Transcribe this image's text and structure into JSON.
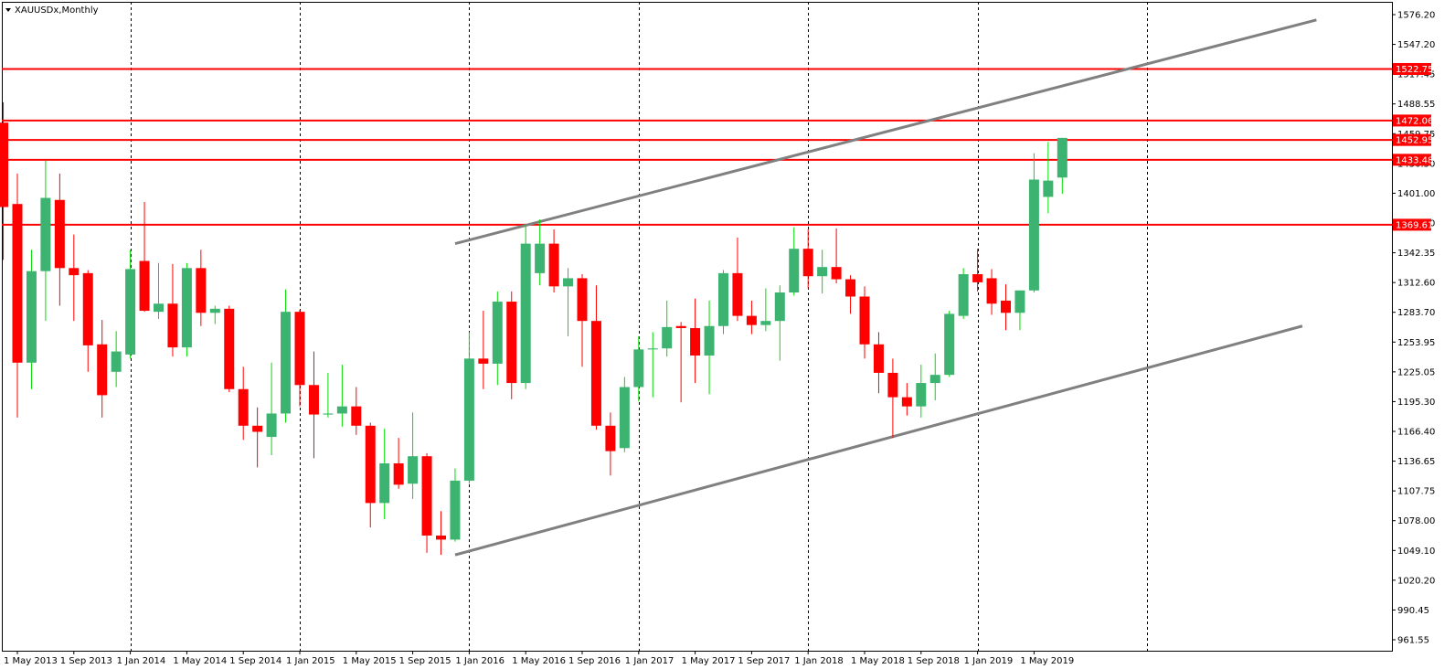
{
  "chart_data": {
    "type": "candlestick",
    "title": "XAUUSDx,Monthly",
    "colors": {
      "bull": "#3cb371",
      "bear": "#ff0000",
      "level_line": "#ff0000",
      "trend_line": "#808080",
      "grid": "#000000"
    },
    "ylim": [
      961.55,
      1576.2
    ],
    "y_ticks": [
      "1576.20",
      "1547.20",
      "1517.45",
      "1488.55",
      "1459.75",
      "1430.50",
      "1401.00",
      "1371.90",
      "1342.35",
      "1312.60",
      "1283.70",
      "1253.95",
      "1225.05",
      "1195.30",
      "1166.40",
      "1136.65",
      "1107.75",
      "1078.00",
      "1049.10",
      "1020.20",
      "990.45",
      "961.55"
    ],
    "x_labels": [
      "1 May 2013",
      "1 Sep 2013",
      "1 Jan 2014",
      "1 May 2014",
      "1 Sep 2014",
      "1 Jan 2015",
      "1 May 2015",
      "1 Sep 2015",
      "1 Jan 2016",
      "1 May 2016",
      "1 Sep 2016",
      "1 Jan 2017",
      "1 May 2017",
      "1 Sep 2017",
      "1 Jan 2018",
      "1 May 2018",
      "1 Sep 2018",
      "1 Jan 2019",
      "1 May 2019"
    ],
    "x_label_months": [
      0,
      4,
      8,
      12,
      16,
      20,
      24,
      28,
      32,
      36,
      40,
      44,
      48,
      52,
      56,
      60,
      64,
      68,
      72
    ],
    "vertical_grid_months": [
      8,
      20,
      32,
      44,
      56,
      68,
      80
    ],
    "horizontal_levels": [
      1522.75,
      1472.06,
      1452.95,
      1433.48,
      1369.61
    ],
    "trend_lines": [
      {
        "start": {
          "month": 31,
          "value": 1351
        },
        "end": {
          "month": 92,
          "value": 1571
        }
      },
      {
        "start": {
          "month": 31,
          "value": 1045
        },
        "end": {
          "month": 91,
          "value": 1270
        }
      }
    ],
    "candles": [
      {
        "month": -1,
        "open": 1470,
        "high": 1490,
        "low": 1335,
        "close": 1387
      },
      {
        "month": 0,
        "open": 1390,
        "high": 1420,
        "low": 1180,
        "close": 1234
      },
      {
        "month": 1,
        "open": 1234,
        "high": 1345,
        "low": 1208,
        "close": 1324
      },
      {
        "month": 2,
        "open": 1324,
        "high": 1433,
        "low": 1275,
        "close": 1396
      },
      {
        "month": 3,
        "open": 1394,
        "high": 1420,
        "low": 1290,
        "close": 1327
      },
      {
        "month": 4,
        "open": 1327,
        "high": 1360,
        "low": 1275,
        "close": 1320
      },
      {
        "month": 5,
        "open": 1322,
        "high": 1325,
        "low": 1225,
        "close": 1251
      },
      {
        "month": 6,
        "open": 1252,
        "high": 1276,
        "low": 1180,
        "close": 1202
      },
      {
        "month": 7,
        "open": 1225,
        "high": 1265,
        "low": 1210,
        "close": 1245
      },
      {
        "month": 8,
        "open": 1242,
        "high": 1345,
        "low": 1238,
        "close": 1326
      },
      {
        "month": 9,
        "open": 1334,
        "high": 1392,
        "low": 1284,
        "close": 1285
      },
      {
        "month": 10,
        "open": 1284,
        "high": 1332,
        "low": 1277,
        "close": 1292
      },
      {
        "month": 11,
        "open": 1292,
        "high": 1331,
        "low": 1240,
        "close": 1249
      },
      {
        "month": 12,
        "open": 1249,
        "high": 1332,
        "low": 1240,
        "close": 1327
      },
      {
        "month": 13,
        "open": 1327,
        "high": 1345,
        "low": 1270,
        "close": 1283
      },
      {
        "month": 14,
        "open": 1283,
        "high": 1290,
        "low": 1272,
        "close": 1287
      },
      {
        "month": 15,
        "open": 1287,
        "high": 1290,
        "low": 1205,
        "close": 1208
      },
      {
        "month": 16,
        "open": 1208,
        "high": 1230,
        "low": 1158,
        "close": 1172
      },
      {
        "month": 17,
        "open": 1172,
        "high": 1190,
        "low": 1131,
        "close": 1166
      },
      {
        "month": 18,
        "open": 1161,
        "high": 1234,
        "low": 1143,
        "close": 1184
      },
      {
        "month": 19,
        "open": 1184,
        "high": 1306,
        "low": 1175,
        "close": 1284
      },
      {
        "month": 20,
        "open": 1284,
        "high": 1286,
        "low": 1191,
        "close": 1212
      },
      {
        "month": 21,
        "open": 1212,
        "high": 1245,
        "low": 1140,
        "close": 1183
      },
      {
        "month": 22,
        "open": 1183,
        "high": 1224,
        "low": 1180,
        "close": 1184
      },
      {
        "month": 23,
        "open": 1184,
        "high": 1232,
        "low": 1171,
        "close": 1191
      },
      {
        "month": 24,
        "open": 1191,
        "high": 1210,
        "low": 1163,
        "close": 1172
      },
      {
        "month": 25,
        "open": 1172,
        "high": 1175,
        "low": 1072,
        "close": 1096
      },
      {
        "month": 26,
        "open": 1096,
        "high": 1169,
        "low": 1080,
        "close": 1135
      },
      {
        "month": 27,
        "open": 1135,
        "high": 1160,
        "low": 1110,
        "close": 1114
      },
      {
        "month": 28,
        "open": 1115,
        "high": 1185,
        "low": 1100,
        "close": 1142
      },
      {
        "month": 29,
        "open": 1142,
        "high": 1145,
        "low": 1047,
        "close": 1064
      },
      {
        "month": 30,
        "open": 1064,
        "high": 1088,
        "low": 1045,
        "close": 1060
      },
      {
        "month": 31,
        "open": 1060,
        "high": 1130,
        "low": 1058,
        "close": 1118
      },
      {
        "month": 32,
        "open": 1118,
        "high": 1264,
        "low": 1115,
        "close": 1238
      },
      {
        "month": 33,
        "open": 1238,
        "high": 1285,
        "low": 1208,
        "close": 1233
      },
      {
        "month": 34,
        "open": 1233,
        "high": 1304,
        "low": 1212,
        "close": 1294
      },
      {
        "month": 35,
        "open": 1294,
        "high": 1304,
        "low": 1198,
        "close": 1214
      },
      {
        "month": 36,
        "open": 1214,
        "high": 1370,
        "low": 1208,
        "close": 1351
      },
      {
        "month": 37,
        "open": 1322,
        "high": 1375,
        "low": 1310,
        "close": 1351
      },
      {
        "month": 38,
        "open": 1351,
        "high": 1365,
        "low": 1303,
        "close": 1309
      },
      {
        "month": 39,
        "open": 1309,
        "high": 1327,
        "low": 1260,
        "close": 1317
      },
      {
        "month": 40,
        "open": 1317,
        "high": 1321,
        "low": 1230,
        "close": 1275
      },
      {
        "month": 41,
        "open": 1275,
        "high": 1310,
        "low": 1168,
        "close": 1172
      },
      {
        "month": 42,
        "open": 1172,
        "high": 1185,
        "low": 1123,
        "close": 1147
      },
      {
        "month": 43,
        "open": 1150,
        "high": 1220,
        "low": 1146,
        "close": 1210
      },
      {
        "month": 44,
        "open": 1210,
        "high": 1260,
        "low": 1196,
        "close": 1247
      },
      {
        "month": 45,
        "open": 1247,
        "high": 1264,
        "low": 1200,
        "close": 1248
      },
      {
        "month": 46,
        "open": 1248,
        "high": 1295,
        "low": 1240,
        "close": 1269
      },
      {
        "month": 47,
        "open": 1270,
        "high": 1274,
        "low": 1195,
        "close": 1268
      },
      {
        "month": 48,
        "open": 1268,
        "high": 1297,
        "low": 1214,
        "close": 1241
      },
      {
        "month": 49,
        "open": 1241,
        "high": 1295,
        "low": 1203,
        "close": 1270
      },
      {
        "month": 50,
        "open": 1270,
        "high": 1325,
        "low": 1262,
        "close": 1322
      },
      {
        "month": 51,
        "open": 1322,
        "high": 1357,
        "low": 1275,
        "close": 1280
      },
      {
        "month": 52,
        "open": 1280,
        "high": 1295,
        "low": 1262,
        "close": 1271
      },
      {
        "month": 53,
        "open": 1271,
        "high": 1307,
        "low": 1265,
        "close": 1275
      },
      {
        "month": 54,
        "open": 1275,
        "high": 1310,
        "low": 1236,
        "close": 1303
      },
      {
        "month": 55,
        "open": 1303,
        "high": 1367,
        "low": 1300,
        "close": 1346
      },
      {
        "month": 56,
        "open": 1346,
        "high": 1365,
        "low": 1307,
        "close": 1319
      },
      {
        "month": 57,
        "open": 1319,
        "high": 1345,
        "low": 1302,
        "close": 1328
      },
      {
        "month": 58,
        "open": 1328,
        "high": 1366,
        "low": 1312,
        "close": 1316
      },
      {
        "month": 59,
        "open": 1316,
        "high": 1320,
        "low": 1282,
        "close": 1299
      },
      {
        "month": 60,
        "open": 1299,
        "high": 1309,
        "low": 1238,
        "close": 1252
      },
      {
        "month": 61,
        "open": 1252,
        "high": 1264,
        "low": 1204,
        "close": 1224
      },
      {
        "month": 62,
        "open": 1224,
        "high": 1238,
        "low": 1160,
        "close": 1200
      },
      {
        "month": 63,
        "open": 1200,
        "high": 1214,
        "low": 1182,
        "close": 1191
      },
      {
        "month": 64,
        "open": 1191,
        "high": 1232,
        "low": 1180,
        "close": 1214
      },
      {
        "month": 65,
        "open": 1214,
        "high": 1243,
        "low": 1197,
        "close": 1222
      },
      {
        "month": 66,
        "open": 1222,
        "high": 1285,
        "low": 1220,
        "close": 1282
      },
      {
        "month": 67,
        "open": 1280,
        "high": 1327,
        "low": 1277,
        "close": 1321
      },
      {
        "month": 68,
        "open": 1321,
        "high": 1346,
        "low": 1304,
        "close": 1313
      },
      {
        "month": 69,
        "open": 1317,
        "high": 1326,
        "low": 1281,
        "close": 1292
      },
      {
        "month": 70,
        "open": 1295,
        "high": 1311,
        "low": 1266,
        "close": 1283
      },
      {
        "month": 71,
        "open": 1283,
        "high": 1305,
        "low": 1266,
        "close": 1305
      },
      {
        "month": 72,
        "open": 1305,
        "high": 1440,
        "low": 1303,
        "close": 1414
      },
      {
        "month": 73,
        "open": 1397,
        "high": 1451,
        "low": 1381,
        "close": 1413
      },
      {
        "month": 74,
        "open": 1416,
        "high": 1455,
        "low": 1400,
        "close": 1455
      }
    ]
  }
}
